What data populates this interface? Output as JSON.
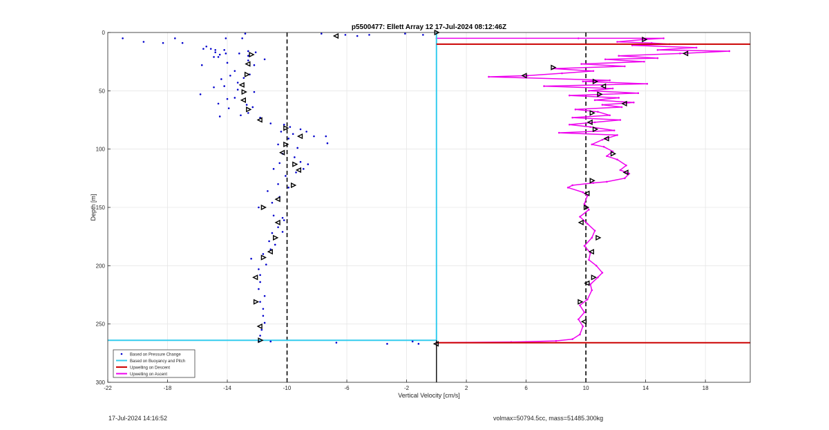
{
  "chart_data": {
    "type": "scatter",
    "title": "p5500477: Ellett Array 12 17-Jul-2024 08:12:46Z",
    "xlabel": "Vertical Velocity [cm/s]",
    "ylabel": "Depth [m]",
    "xlim": [
      -22,
      21
    ],
    "ylim": [
      0,
      300
    ],
    "y_reversed": true,
    "grid": true,
    "xticks": [
      -22,
      -18,
      -14,
      -10,
      -6,
      -2,
      2,
      6,
      10,
      14,
      18
    ],
    "yticks": [
      0,
      50,
      100,
      150,
      200,
      250,
      300
    ],
    "legend_position": "bottom-left",
    "colors": {
      "pressure": "#0000cc",
      "buoyancy": "#33ccee",
      "descent": "#cc0000",
      "ascent": "#ee00ee",
      "reference_lines": "#000000"
    },
    "reference_lines_x": [
      -10,
      10
    ],
    "series": [
      {
        "name": "Based on Pressure Change",
        "kind": "points",
        "points": [
          [
            -21,
            5
          ],
          [
            -19.6,
            8
          ],
          [
            -18.3,
            9
          ],
          [
            -17.5,
            5
          ],
          [
            -17,
            9
          ],
          [
            -15.4,
            12
          ],
          [
            -15.1,
            14
          ],
          [
            -14.8,
            17
          ],
          [
            -14.5,
            19
          ],
          [
            -14.9,
            21
          ],
          [
            -14.2,
            15
          ],
          [
            -15.7,
            28
          ],
          [
            -14,
            26
          ],
          [
            -13.2,
            18
          ],
          [
            -12.6,
            16
          ],
          [
            -12.1,
            17
          ],
          [
            -11.5,
            23
          ],
          [
            -12.6,
            20
          ],
          [
            -12.6,
            24
          ],
          [
            -12.2,
            28
          ],
          [
            -13.5,
            33
          ],
          [
            -13.8,
            37
          ],
          [
            -14.4,
            40
          ],
          [
            -12.9,
            39
          ],
          [
            -12.5,
            36
          ],
          [
            -13.3,
            43
          ],
          [
            -14.2,
            46
          ],
          [
            -14.9,
            47
          ],
          [
            -15.8,
            53
          ],
          [
            -13.3,
            49
          ],
          [
            -13.5,
            56
          ],
          [
            -12.2,
            51
          ],
          [
            -14,
            57
          ],
          [
            -14.6,
            61
          ],
          [
            -12.7,
            62
          ],
          [
            -13.9,
            65
          ],
          [
            -14.5,
            72
          ],
          [
            -13.1,
            71
          ],
          [
            -12.3,
            64
          ],
          [
            -12.6,
            69
          ],
          [
            -11.8,
            73
          ],
          [
            -11.1,
            78
          ],
          [
            -10.2,
            79
          ],
          [
            -9.8,
            81
          ],
          [
            -10.4,
            85
          ],
          [
            -9.1,
            83
          ],
          [
            -8.7,
            85
          ],
          [
            -9.6,
            87
          ],
          [
            -8.2,
            89
          ],
          [
            -7.4,
            89
          ],
          [
            -7.3,
            95
          ],
          [
            -9.9,
            91
          ],
          [
            -10.6,
            96
          ],
          [
            -9.3,
            99
          ],
          [
            -10.3,
            104
          ],
          [
            -9.5,
            107
          ],
          [
            -9.1,
            111
          ],
          [
            -8.6,
            113
          ],
          [
            -8.9,
            117
          ],
          [
            -10.5,
            112
          ],
          [
            -10.9,
            117
          ],
          [
            -9.4,
            120
          ],
          [
            -10.1,
            123
          ],
          [
            -10.6,
            130
          ],
          [
            -11.3,
            136
          ],
          [
            -9.9,
            133
          ],
          [
            -10.5,
            141
          ],
          [
            -11.9,
            150
          ],
          [
            -11,
            146
          ],
          [
            -10.9,
            157
          ],
          [
            -10.3,
            159
          ],
          [
            -10.2,
            161
          ],
          [
            -10.6,
            167
          ],
          [
            -10.3,
            171
          ],
          [
            -11,
            172
          ],
          [
            -11.2,
            179
          ],
          [
            -10.8,
            182
          ],
          [
            -11.1,
            186
          ],
          [
            -11.6,
            190
          ],
          [
            -12.4,
            194
          ],
          [
            -11.4,
            199
          ],
          [
            -11.9,
            203
          ],
          [
            -11.8,
            208
          ],
          [
            -11.8,
            214
          ],
          [
            -11.9,
            220
          ],
          [
            -11.5,
            226
          ],
          [
            -11.8,
            231
          ],
          [
            -11.6,
            237
          ],
          [
            -11.6,
            243
          ],
          [
            -11.5,
            249
          ],
          [
            -11.7,
            255
          ],
          [
            -11.8,
            260
          ],
          [
            -11.9,
            265
          ],
          [
            -11.1,
            265
          ],
          [
            -6.7,
            266
          ],
          [
            -3.3,
            267
          ],
          [
            -1.6,
            265
          ],
          [
            -1.2,
            267
          ],
          [
            -0.9,
            2
          ],
          [
            -2.1,
            1
          ],
          [
            -4.5,
            2
          ],
          [
            -5.3,
            3
          ],
          [
            -6.1,
            2
          ],
          [
            -7.7,
            1
          ],
          [
            -12.8,
            1
          ],
          [
            -13,
            5
          ],
          [
            -14.1,
            5
          ],
          [
            -15.6,
            14
          ],
          [
            -14.8,
            15
          ],
          [
            -14.1,
            18
          ],
          [
            -14.6,
            21
          ]
        ]
      },
      {
        "name": "Based on Buoyancy and Pitch",
        "kind": "path",
        "points": [
          [
            0,
            0
          ],
          [
            0,
            264
          ],
          [
            -22,
            264
          ]
        ]
      },
      {
        "name": "Upwelling on Descent",
        "kind": "path",
        "segments": [
          [
            [
              0,
              10
            ],
            [
              21,
              10
            ]
          ],
          [
            [
              0,
              266
            ],
            [
              21,
              266
            ]
          ]
        ]
      },
      {
        "name": "Upwelling on Ascent",
        "kind": "path",
        "points": [
          [
            0,
            266
          ],
          [
            5,
            265.5
          ],
          [
            8,
            264.5
          ],
          [
            9.1,
            263
          ],
          [
            9.6,
            259
          ],
          [
            9.8,
            252
          ],
          [
            9.5,
            246
          ],
          [
            9.9,
            240
          ],
          [
            9.6,
            234
          ],
          [
            10.1,
            229
          ],
          [
            10.4,
            221
          ],
          [
            10.3,
            216
          ],
          [
            10.8,
            210
          ],
          [
            11.1,
            206
          ],
          [
            10.7,
            200
          ],
          [
            10.2,
            195
          ],
          [
            10.3,
            189
          ],
          [
            9.9,
            183
          ],
          [
            10.4,
            176
          ],
          [
            10.6,
            170
          ],
          [
            10.1,
            164
          ],
          [
            9.6,
            158
          ],
          [
            10.2,
            152
          ],
          [
            9.9,
            147
          ],
          [
            10.1,
            140
          ],
          [
            9.8,
            137
          ],
          [
            8.8,
            133
          ],
          [
            9.1,
            131
          ],
          [
            10.5,
            129
          ],
          [
            11.4,
            128
          ],
          [
            12.6,
            125
          ],
          [
            12.9,
            121
          ],
          [
            12.3,
            118
          ],
          [
            12.7,
            114
          ],
          [
            12.1,
            109
          ],
          [
            11.4,
            106
          ],
          [
            11.8,
            102
          ],
          [
            11.2,
            98
          ],
          [
            10.4,
            96
          ],
          [
            11.1,
            92
          ],
          [
            12.1,
            88
          ],
          [
            8.2,
            86
          ],
          [
            11.9,
            84
          ],
          [
            10.3,
            81
          ],
          [
            8.9,
            79
          ],
          [
            10.6,
            77
          ],
          [
            12.3,
            75
          ],
          [
            9.1,
            73
          ],
          [
            11.6,
            71
          ],
          [
            10.8,
            68
          ],
          [
            9.3,
            66
          ],
          [
            12.4,
            64
          ],
          [
            11.1,
            62
          ],
          [
            13.2,
            60
          ],
          [
            10.6,
            58
          ],
          [
            12.2,
            56
          ],
          [
            8.9,
            54
          ],
          [
            13.5,
            52
          ],
          [
            10.2,
            50
          ],
          [
            11.8,
            48
          ],
          [
            7.2,
            46
          ],
          [
            14.1,
            44
          ],
          [
            9.8,
            42
          ],
          [
            11.6,
            41
          ],
          [
            3.5,
            38
          ],
          [
            6.1,
            37
          ],
          [
            8.4,
            35
          ],
          [
            10.5,
            33
          ],
          [
            7.8,
            31
          ],
          [
            12.6,
            29
          ],
          [
            9.7,
            27
          ],
          [
            13.9,
            25
          ],
          [
            11.3,
            23
          ],
          [
            14.8,
            22
          ],
          [
            12.2,
            20
          ],
          [
            16.3,
            18
          ],
          [
            19.6,
            16
          ],
          [
            14.8,
            15
          ],
          [
            17.4,
            13
          ],
          [
            13.1,
            11
          ],
          [
            15.6,
            10
          ],
          [
            14.4,
            9
          ],
          [
            12.1,
            8
          ],
          [
            13.9,
            6
          ],
          [
            15.2,
            5
          ],
          [
            9.5,
            5
          ],
          [
            0,
            5
          ]
        ]
      }
    ],
    "markers_pressure": [
      [
        -12.4,
        19
      ],
      [
        -12.6,
        27
      ],
      [
        -12.7,
        36
      ],
      [
        -13,
        45
      ],
      [
        -12.9,
        51
      ],
      [
        -12.9,
        58
      ],
      [
        -12.6,
        66
      ],
      [
        -11.8,
        75
      ],
      [
        -10.1,
        82
      ],
      [
        -9.1,
        89
      ],
      [
        -10.1,
        96
      ],
      [
        -10.3,
        103
      ],
      [
        -9.5,
        113
      ],
      [
        -9.2,
        118
      ],
      [
        -9.6,
        131
      ],
      [
        -10.6,
        143
      ],
      [
        -11.6,
        150
      ],
      [
        -10.6,
        163
      ],
      [
        -10.8,
        176
      ],
      [
        -11.1,
        188
      ],
      [
        -11.6,
        193
      ],
      [
        -12.1,
        210
      ],
      [
        -12.1,
        231
      ],
      [
        -11.8,
        252
      ],
      [
        -11.8,
        264
      ],
      [
        -6.7,
        3
      ]
    ],
    "markers_ascent": [
      [
        13.9,
        6
      ],
      [
        16.7,
        18
      ],
      [
        7.8,
        30
      ],
      [
        5.9,
        37
      ],
      [
        10.6,
        42
      ],
      [
        11.2,
        46
      ],
      [
        10.9,
        53
      ],
      [
        12.6,
        61
      ],
      [
        10.4,
        69
      ],
      [
        10.3,
        77
      ],
      [
        10.6,
        83
      ],
      [
        11.4,
        91
      ],
      [
        11.8,
        104
      ],
      [
        12.7,
        120
      ],
      [
        10.4,
        127
      ],
      [
        10.1,
        138
      ],
      [
        10,
        150
      ],
      [
        9.7,
        163
      ],
      [
        10.8,
        176
      ],
      [
        10.4,
        188
      ],
      [
        10.5,
        210
      ],
      [
        10.1,
        215
      ],
      [
        9.6,
        231
      ],
      [
        9.9,
        248
      ],
      [
        0,
        0
      ],
      [
        0,
        267
      ]
    ],
    "legend": [
      {
        "label": "Based on Pressure Change",
        "style": "dots",
        "color": "#0000cc"
      },
      {
        "label": "Based on Buoyancy and Pitch",
        "style": "line",
        "color": "#33ccee"
      },
      {
        "label": "Upwelling on Descent",
        "style": "line",
        "color": "#cc0000"
      },
      {
        "label": "Upwelling on Ascent",
        "style": "line",
        "color": "#ee00ee"
      }
    ]
  },
  "footer": {
    "timestamp": "17-Jul-2024 14:16:52",
    "stats": "volmax=50794.5cc, mass=51485.300kg"
  }
}
